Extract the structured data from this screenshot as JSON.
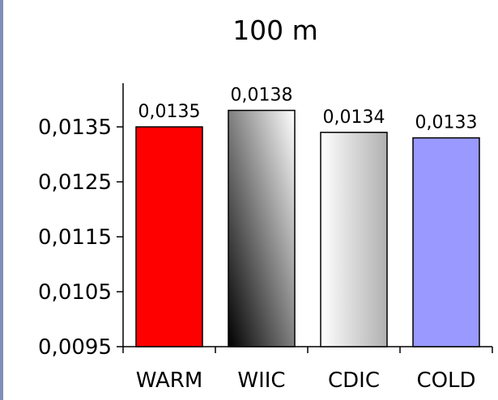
{
  "chart_data": {
    "type": "bar",
    "title": "100 m",
    "xlabel": "",
    "ylabel": "",
    "categories": [
      "WARM",
      "WIIC",
      "CDIC",
      "COLD"
    ],
    "values": [
      0.0135,
      0.0138,
      0.0134,
      0.0133
    ],
    "data_labels": [
      "0,0135",
      "0,0138",
      "0,0134",
      "0,0133"
    ],
    "yticks": [
      0.0095,
      0.0105,
      0.0115,
      0.0125,
      0.0135
    ],
    "ytick_labels": [
      "0,0095",
      "0,0105",
      "0,0115",
      "0,0125",
      "0,0135"
    ],
    "ylim": [
      0.0095,
      0.014
    ],
    "grid": false,
    "legend": "none",
    "bar_fills": [
      "solid-red",
      "gradient-black-to-white",
      "gradient-white-to-gray",
      "solid-lavender"
    ],
    "colors": {
      "warm": "#ff0000",
      "wiic_dark": "#000000",
      "wiic_light": "#ffffff",
      "cdic_light": "#ffffff",
      "cdic_dark": "#b0b0b0",
      "cold": "#9999ff",
      "axis": "#000000"
    }
  }
}
